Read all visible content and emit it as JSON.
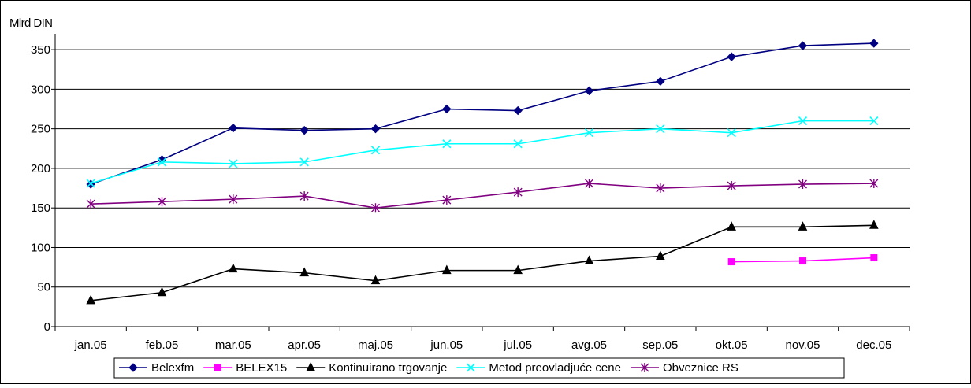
{
  "chart_data": {
    "type": "line",
    "ylabel": "Mlrd DIN",
    "xlabel": "",
    "ylim": [
      0,
      370
    ],
    "yticks": [
      0,
      50,
      100,
      150,
      200,
      250,
      300,
      350
    ],
    "grid": "horizontal",
    "legend_position": "bottom",
    "categories": [
      "jan.05",
      "feb.05",
      "mar.05",
      "apr.05",
      "maj.05",
      "jun.05",
      "jul.05",
      "avg.05",
      "sep.05",
      "okt.05",
      "nov.05",
      "dec.05"
    ],
    "series": [
      {
        "name": "Belexfm",
        "color": "#000080",
        "marker": "diamond",
        "values": [
          180,
          211,
          251,
          248,
          250,
          275,
          273,
          298,
          310,
          341,
          355,
          358
        ]
      },
      {
        "name": "BELEX15",
        "color": "#FF00FF",
        "marker": "square",
        "values": [
          null,
          null,
          null,
          null,
          null,
          null,
          null,
          null,
          null,
          82,
          83,
          87
        ]
      },
      {
        "name": "Kontinuirano trgovanje",
        "color": "#000000",
        "marker": "triangle",
        "values": [
          33,
          43,
          73,
          68,
          58,
          71,
          71,
          83,
          89,
          126,
          126,
          128
        ]
      },
      {
        "name": "Metod preovladjuće cene",
        "color": "#00FFFF",
        "marker": "x",
        "values": [
          181,
          208,
          206,
          208,
          223,
          231,
          231,
          245,
          250,
          245,
          260,
          260
        ]
      },
      {
        "name": "Obveznice RS",
        "color": "#800080",
        "marker": "star",
        "values": [
          155,
          158,
          161,
          165,
          150,
          160,
          170,
          181,
          175,
          178,
          180,
          181
        ]
      }
    ]
  }
}
